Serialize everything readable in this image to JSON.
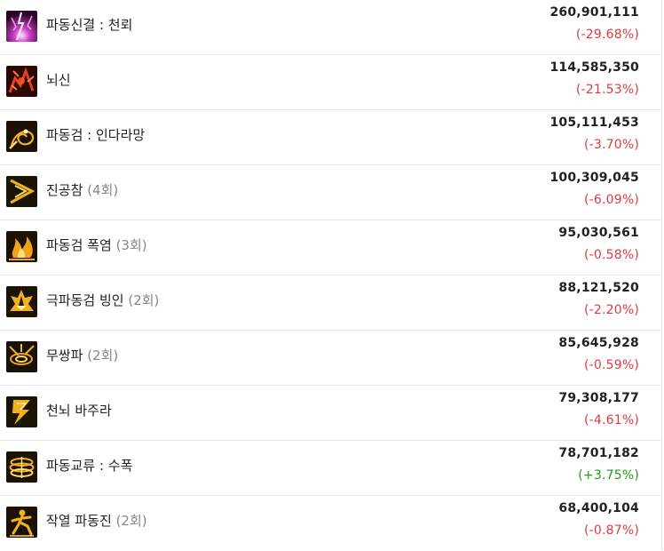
{
  "skills": [
    {
      "name": "파동신결 : 천뢰",
      "count": "",
      "damage": "260,901,111",
      "change": "(-29.68%)",
      "trend": "neg",
      "icon": "purple-lightning-skill-icon"
    },
    {
      "name": "뇌신",
      "count": "",
      "damage": "114,585,350",
      "change": "(-21.53%)",
      "trend": "neg",
      "icon": "red-thunder-god-skill-icon"
    },
    {
      "name": "파동검 : 인다라망",
      "count": "",
      "damage": "105,111,453",
      "change": "(-3.70%)",
      "trend": "neg",
      "icon": "spiral-sword-skill-icon"
    },
    {
      "name": "진공참",
      "count": "(4회)",
      "damage": "100,309,045",
      "change": "(-6.09%)",
      "trend": "neg",
      "icon": "vacuum-slash-skill-icon"
    },
    {
      "name": "파동검 폭염",
      "count": "(3회)",
      "damage": "95,030,561",
      "change": "(-0.58%)",
      "trend": "neg",
      "icon": "blazing-flame-skill-icon"
    },
    {
      "name": "극파동검 빙인",
      "count": "(2회)",
      "damage": "88,121,520",
      "change": "(-2.20%)",
      "trend": "neg",
      "icon": "ice-blade-skill-icon"
    },
    {
      "name": "무쌍파",
      "count": "(2회)",
      "damage": "85,645,928",
      "change": "(-0.59%)",
      "trend": "neg",
      "icon": "vortex-wave-skill-icon"
    },
    {
      "name": "천뇌 바주라",
      "count": "",
      "damage": "79,308,177",
      "change": "(-4.61%)",
      "trend": "neg",
      "icon": "lightning-bolt-skill-icon"
    },
    {
      "name": "파동교류 : 수폭",
      "count": "",
      "damage": "78,701,182",
      "change": "(+3.75%)",
      "trend": "pos",
      "icon": "ring-wave-skill-icon"
    },
    {
      "name": "작열 파동진",
      "count": "(2회)",
      "damage": "68,400,104",
      "change": "(-0.87%)",
      "trend": "neg",
      "icon": "fiery-figure-skill-icon"
    }
  ],
  "colors": {
    "negative": "#e0393e",
    "positive": "#1f9a1f",
    "icon_gold": "#e6a81e"
  }
}
